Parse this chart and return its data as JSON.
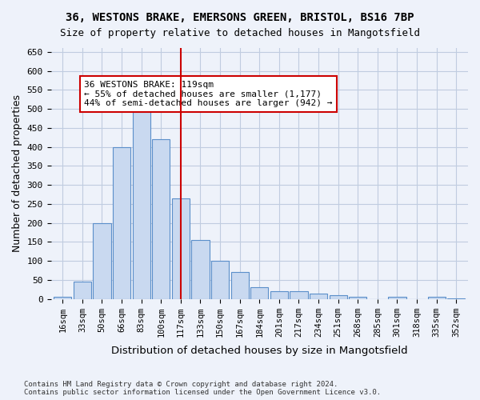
{
  "title_line1": "36, WESTONS BRAKE, EMERSONS GREEN, BRISTOL, BS16 7BP",
  "title_line2": "Size of property relative to detached houses in Mangotsfield",
  "xlabel": "Distribution of detached houses by size in Mangotsfield",
  "ylabel": "Number of detached properties",
  "footnote": "Contains HM Land Registry data © Crown copyright and database right 2024.\nContains public sector information licensed under the Open Government Licence v3.0.",
  "bin_labels": [
    "16sqm",
    "33sqm",
    "50sqm",
    "66sqm",
    "83sqm",
    "100sqm",
    "117sqm",
    "133sqm",
    "150sqm",
    "167sqm",
    "184sqm",
    "201sqm",
    "217sqm",
    "234sqm",
    "251sqm",
    "268sqm",
    "285sqm",
    "301sqm",
    "318sqm",
    "335sqm",
    "352sqm"
  ],
  "bar_heights": [
    5,
    45,
    200,
    400,
    505,
    420,
    265,
    155,
    100,
    70,
    30,
    20,
    20,
    15,
    10,
    5,
    0,
    5,
    0,
    5,
    2
  ],
  "property_label": "36 WESTONS BRAKE: 119sqm",
  "annotation_line1": "← 55% of detached houses are smaller (1,177)",
  "annotation_line2": "44% of semi-detached houses are larger (942) →",
  "bar_color": "#c9d9f0",
  "bar_edge_color": "#5b8fca",
  "vline_color": "#cc0000",
  "background_color": "#eef2fa",
  "grid_color": "#c0cce0",
  "ylim": [
    0,
    660
  ],
  "yticks": [
    0,
    50,
    100,
    150,
    200,
    250,
    300,
    350,
    400,
    450,
    500,
    550,
    600,
    650
  ],
  "annotation_box_color": "#ffffff",
  "annotation_box_edge": "#cc0000",
  "vline_x_index": 6
}
